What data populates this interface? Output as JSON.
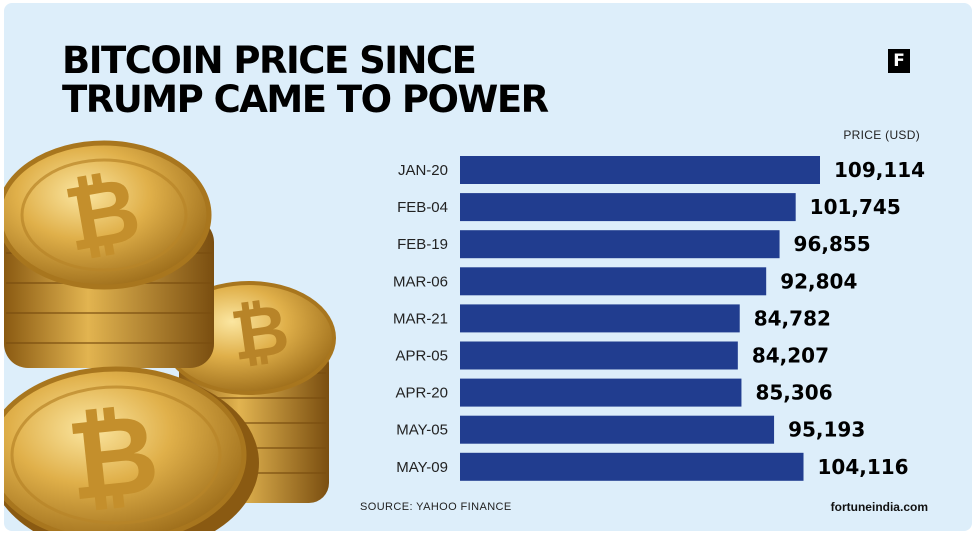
{
  "header": {
    "title_line1": "BITCOIN PRICE SINCE",
    "title_line2": "TRUMP CAME TO POWER",
    "logo_letter": "F"
  },
  "footer": {
    "source": "SOURCE: YAHOO FINANCE",
    "site": "fortuneindia.com"
  },
  "colors": {
    "background": "#ddeefa",
    "bar": "#213d8f",
    "coin_gold": "#d4a73a"
  },
  "illustration": {
    "icon": "bitcoin-coins-stack"
  },
  "chart_data": {
    "type": "bar",
    "orientation": "horizontal",
    "unit_label": "PRICE (USD)",
    "categories": [
      "JAN-20",
      "FEB-04",
      "FEB-19",
      "MAR-06",
      "MAR-21",
      "APR-05",
      "APR-20",
      "MAY-05",
      "MAY-09"
    ],
    "values": [
      109114,
      101745,
      96855,
      92804,
      84782,
      84207,
      85306,
      95193,
      104116
    ],
    "value_labels": [
      "109,114",
      "101,745",
      "96,855",
      "92,804",
      "84,782",
      "84,207",
      "85,306",
      "95,193",
      "104,116"
    ],
    "xlim": [
      0,
      109114
    ],
    "grid": false,
    "legend": "none"
  }
}
